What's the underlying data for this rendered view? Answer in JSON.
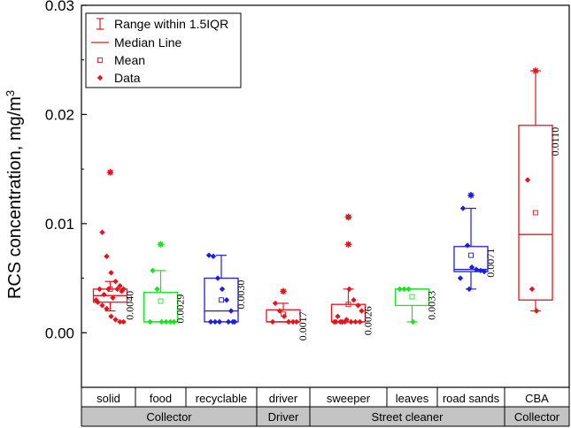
{
  "chart_data": {
    "type": "box",
    "ylabel": "RCS concentration, mg/m",
    "ylabel_superscript": "3",
    "ylim": [
      -0.005,
      0.03
    ],
    "yticks": [
      0.0,
      0.01,
      0.02,
      0.03
    ],
    "ytick_labels": [
      "0.00",
      "0.01",
      "0.02",
      "0.03"
    ],
    "legend": {
      "placement": "top-left",
      "items": [
        {
          "label": "Range within 1.5IQR",
          "symbol": "whisker"
        },
        {
          "label": "Median Line",
          "symbol": "line"
        },
        {
          "label": "Mean",
          "symbol": "square-open"
        },
        {
          "label": "Data",
          "symbol": "diamond"
        }
      ]
    },
    "series": [
      {
        "category": "solid",
        "group": "Collector",
        "color": "#e8141b",
        "whisker_low": 0.002,
        "q1": 0.0028,
        "median": 0.0034,
        "q3": 0.004,
        "whisker_high": 0.0047,
        "mean": 0.004,
        "mean_label": "0.0040",
        "points": [
          0.0147,
          0.0092,
          0.007,
          0.0055,
          0.0047,
          0.0043,
          0.004,
          0.004,
          0.004,
          0.004,
          0.0038,
          0.0035,
          0.0032,
          0.003,
          0.0028,
          0.0025,
          0.0022,
          0.0015,
          0.0012,
          0.001,
          0.001
        ],
        "outliers": [
          0.0147
        ]
      },
      {
        "category": "food",
        "group": "Collector",
        "color": "#18e61e",
        "whisker_low": 0.001,
        "q1": 0.001,
        "median": 0.001,
        "q3": 0.0037,
        "whisker_high": 0.0057,
        "mean": 0.0029,
        "mean_label": "0.0029",
        "points": [
          0.0081,
          0.0057,
          0.004,
          0.001,
          0.001,
          0.001,
          0.001,
          0.001
        ],
        "outliers": [
          0.0081
        ]
      },
      {
        "category": "recyclable",
        "group": "Collector",
        "color": "#1e1edc",
        "whisker_low": 0.001,
        "q1": 0.001,
        "median": 0.002,
        "q3": 0.005,
        "whisker_high": 0.0071,
        "mean": 0.003,
        "mean_label": "0.0030",
        "points": [
          0.0071,
          0.007,
          0.005,
          0.004,
          0.003,
          0.002,
          0.001,
          0.001,
          0.001,
          0.001,
          0.001,
          0.001
        ],
        "outliers": []
      },
      {
        "category": "driver",
        "group": "Driver",
        "color": "#e8141b",
        "whisker_low": 0.001,
        "q1": 0.001,
        "median": 0.001,
        "q3": 0.0021,
        "whisker_high": 0.0027,
        "mean": 0.0017,
        "mean_label": "0.0017",
        "points": [
          0.0038,
          0.0027,
          0.002,
          0.0015,
          0.001,
          0.001,
          0.001,
          0.001
        ],
        "outliers": [
          0.0038
        ]
      },
      {
        "category": "sweeper",
        "group": "Street cleaner",
        "color": "#e8141b",
        "whisker_low": 0.001,
        "q1": 0.001,
        "median": 0.001,
        "q3": 0.0026,
        "whisker_high": 0.004,
        "mean": 0.0026,
        "mean_label": "0.0026",
        "points": [
          0.0106,
          0.0106,
          0.0081,
          0.004,
          0.003,
          0.0025,
          0.002,
          0.0015,
          0.0012,
          0.001,
          0.001,
          0.001,
          0.001,
          0.001,
          0.001,
          0.001,
          0.001
        ],
        "outliers": [
          0.0106,
          0.0106,
          0.0081
        ]
      },
      {
        "category": "leaves",
        "group": "Street cleaner",
        "color": "#18e61e",
        "whisker_low": 0.001,
        "q1": 0.0025,
        "median": 0.004,
        "q3": 0.004,
        "whisker_high": 0.004,
        "mean": 0.0033,
        "mean_label": "0.0033",
        "points": [
          0.004,
          0.004,
          0.004,
          0.001
        ],
        "outliers": []
      },
      {
        "category": "road sands",
        "group": "Street cleaner",
        "color": "#1e1edc",
        "whisker_low": 0.004,
        "q1": 0.0056,
        "median": 0.0058,
        "q3": 0.0079,
        "whisker_high": 0.0114,
        "mean": 0.0071,
        "mean_label": "0.0071",
        "points": [
          0.0126,
          0.0114,
          0.008,
          0.006,
          0.0058,
          0.0057,
          0.0056,
          0.005,
          0.004
        ],
        "outliers": [
          0.0126
        ]
      },
      {
        "category": "CBA",
        "group": "Collector",
        "color": "#e8141b",
        "whisker_low": 0.002,
        "q1": 0.003,
        "median": 0.009,
        "q3": 0.019,
        "whisker_high": 0.024,
        "mean": 0.011,
        "mean_label": "0.0110",
        "points": [
          0.024,
          0.014,
          0.004,
          0.002
        ],
        "outliers": [
          0.024
        ]
      }
    ],
    "groups": [
      {
        "label": "Collector",
        "span": [
          0,
          2
        ]
      },
      {
        "label": "Driver",
        "span": [
          3,
          3
        ]
      },
      {
        "label": "Street cleaner",
        "span": [
          4,
          6
        ]
      },
      {
        "label": "Collector",
        "span": [
          7,
          7
        ]
      }
    ],
    "grid": false
  }
}
